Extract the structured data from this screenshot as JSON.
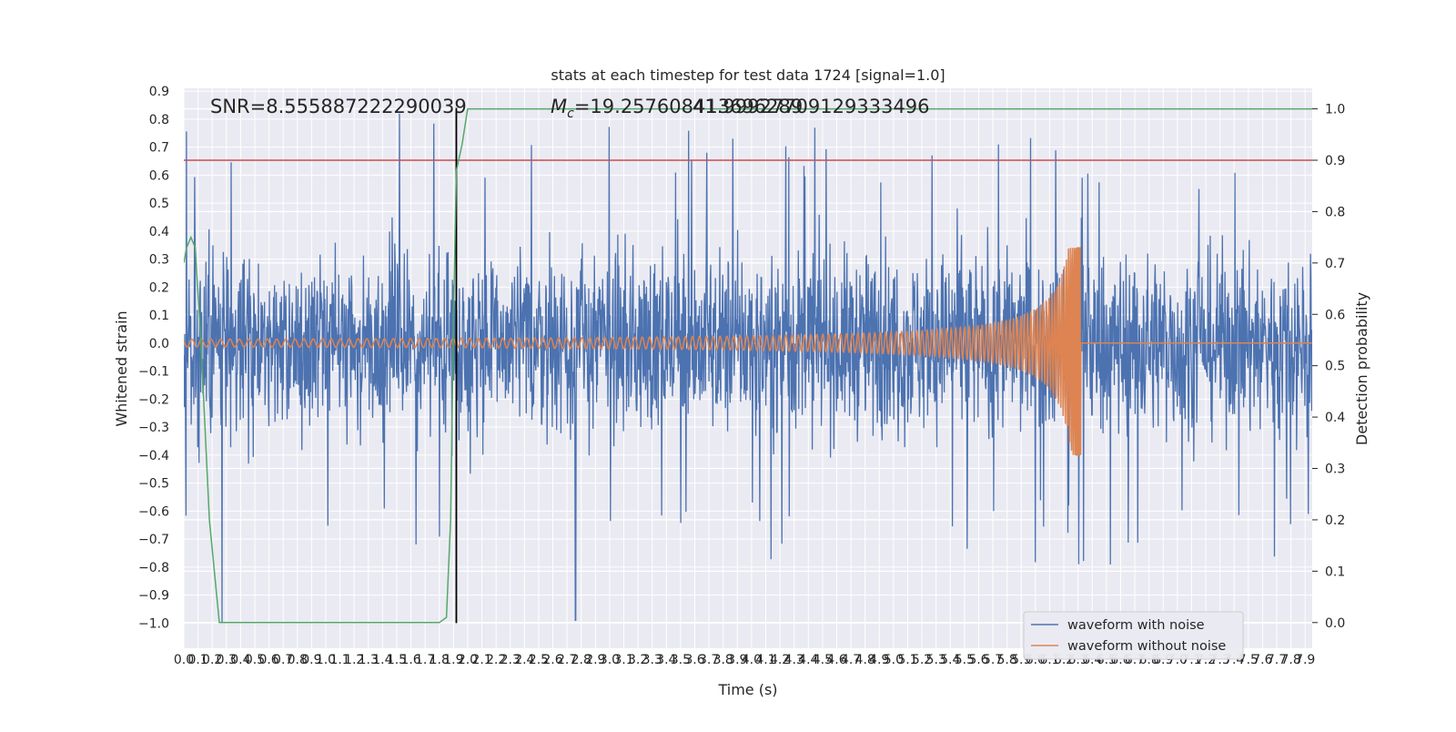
{
  "chart_data": {
    "type": "line",
    "title": "stats at each timestep for test data 1724 [signal=1.0]",
    "xlabel": "Time (s)",
    "ylabel_left": "Whitened strain",
    "ylabel_right": "Detection probability",
    "xlim": [
      0.0,
      7.95
    ],
    "ylim_left": [
      -1.09,
      0.91
    ],
    "ylim_right": [
      -0.05,
      1.04
    ],
    "grid": true,
    "x_ticks": [
      "0.0",
      "0.1",
      "0.2",
      "0.3",
      "0.4",
      "0.5",
      "0.6",
      "0.7",
      "0.8",
      "0.9",
      "1.0",
      "1.1",
      "1.2",
      "1.3",
      "1.4",
      "1.5",
      "1.6",
      "1.7",
      "1.8",
      "1.9",
      "2.0",
      "2.1",
      "2.2",
      "2.3",
      "2.4",
      "2.5",
      "2.6",
      "2.7",
      "2.8",
      "2.9",
      "3.0",
      "3.1",
      "3.2",
      "3.3",
      "3.4",
      "3.5",
      "3.6",
      "3.7",
      "3.8",
      "3.9",
      "4.0",
      "4.1",
      "4.2",
      "4.3",
      "4.4",
      "4.5",
      "4.6",
      "4.7",
      "4.8",
      "4.9",
      "5.0",
      "5.1",
      "5.2",
      "5.3",
      "5.4",
      "5.5",
      "5.6",
      "5.7",
      "5.8",
      "5.9",
      "6.0",
      "6.1",
      "6.2",
      "6.3",
      "6.4",
      "6.5",
      "6.6",
      "6.7",
      "6.8",
      "6.9",
      "7.0",
      "7.1",
      "7.2",
      "7.3",
      "7.4",
      "7.5",
      "7.6",
      "7.7",
      "7.8",
      "7.9"
    ],
    "y_ticks_left": [
      "-1.0",
      "-0.9",
      "-0.8",
      "-0.7",
      "-0.6",
      "-0.5",
      "-0.4",
      "-0.3",
      "-0.2",
      "-0.1",
      "0.0",
      "0.1",
      "0.2",
      "0.3",
      "0.4",
      "0.5",
      "0.6",
      "0.7",
      "0.8",
      "0.9"
    ],
    "y_ticks_right": [
      "0.0",
      "0.1",
      "0.2",
      "0.3",
      "0.4",
      "0.5",
      "0.6",
      "0.7",
      "0.8",
      "0.9",
      "1.0"
    ],
    "annotations": {
      "snr": "SNR=8.555887222290039",
      "mc_symbol": "M",
      "mc_sub": "c",
      "mc_value": "=19.257608413696289",
      "overlap": "41.99927709129333496"
    },
    "threshold": 0.9,
    "event_time": 1.92,
    "series": [
      {
        "name": "waveform with noise",
        "color": "#4c72b0",
        "description_of_values": "dense noise, approx within [-0.5, 0.5] with spikes to ~0.82 and ~-1.0",
        "noise_sigma": 0.2,
        "peak_high": 0.82,
        "peak_low": -1.0
      },
      {
        "name": "waveform without noise",
        "color": "#dd8452",
        "chirp": {
          "t_start": 0.0,
          "t_merge": 6.32,
          "amp_start": 0.005,
          "amp_peak_pos": 0.34,
          "amp_peak_neg": -0.4
        }
      },
      {
        "name": "detection probability",
        "color": "#55a868",
        "axis": "right",
        "x": [
          0.0,
          0.02,
          0.05,
          0.08,
          0.12,
          0.18,
          0.25,
          1.5,
          1.6,
          1.8,
          1.85,
          1.88,
          1.9,
          1.92,
          1.96,
          2.0,
          7.95
        ],
        "y": [
          0.7,
          0.73,
          0.75,
          0.73,
          0.55,
          0.2,
          0.0,
          0.0,
          0.0,
          0.0,
          0.01,
          0.2,
          0.6,
          0.88,
          0.93,
          1.0,
          1.0
        ]
      }
    ],
    "legend": {
      "placement": "lower-right",
      "entries": [
        "waveform with noise",
        "waveform without noise"
      ]
    },
    "colors": {
      "plot_bg": "#eaeaf2",
      "grid": "#ffffff",
      "threshold": "#c44e52",
      "event_line": "#000000"
    }
  }
}
